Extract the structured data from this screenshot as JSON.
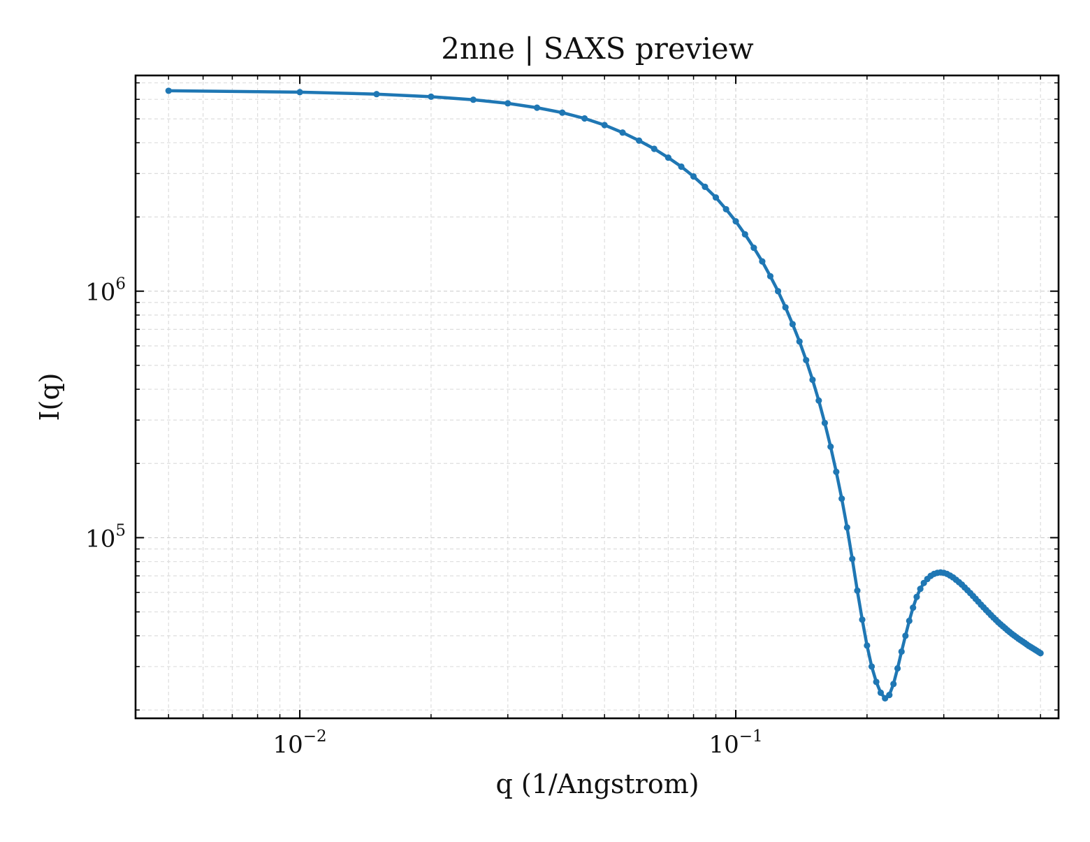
{
  "chart_data": {
    "type": "line",
    "title": "2nne | SAXS preview",
    "xlabel": "q (1/Angstrom)",
    "ylabel": "I(q)",
    "xscale": "log",
    "yscale": "log",
    "xlim": [
      0.0042,
      0.55
    ],
    "ylim": [
      18500,
      7500000
    ],
    "grid": true,
    "legend": "none",
    "color": "#1f77b4",
    "x_ticks": [
      {
        "value": 0.01,
        "base": "10",
        "exp": "−2"
      },
      {
        "value": 0.1,
        "base": "10",
        "exp": "−1"
      }
    ],
    "y_ticks": [
      {
        "value": 100000,
        "base": "10",
        "exp": "5"
      },
      {
        "value": 1000000,
        "base": "10",
        "exp": "6"
      }
    ],
    "series": [
      {
        "x": [
          0.005,
          0.01,
          0.015,
          0.02,
          0.025,
          0.03,
          0.035,
          0.04,
          0.045,
          0.05,
          0.055,
          0.06,
          0.065,
          0.07,
          0.075,
          0.08,
          0.085,
          0.09,
          0.095,
          0.1,
          0.105,
          0.11,
          0.115,
          0.12,
          0.125,
          0.13,
          0.135,
          0.14,
          0.145,
          0.15,
          0.155,
          0.16,
          0.165,
          0.17,
          0.175,
          0.18,
          0.185,
          0.19,
          0.195,
          0.2,
          0.205,
          0.21,
          0.215,
          0.22,
          0.225,
          0.23,
          0.235,
          0.24,
          0.245,
          0.25,
          0.255,
          0.26,
          0.265,
          0.27,
          0.275,
          0.28,
          0.285,
          0.29,
          0.295,
          0.3,
          0.305,
          0.31,
          0.315,
          0.32,
          0.325,
          0.33,
          0.335,
          0.34,
          0.345,
          0.35,
          0.355,
          0.36,
          0.365,
          0.37,
          0.375,
          0.38,
          0.385,
          0.39,
          0.395,
          0.4,
          0.405,
          0.41,
          0.415,
          0.42,
          0.425,
          0.43,
          0.435,
          0.44,
          0.445,
          0.45,
          0.455,
          0.46,
          0.465,
          0.47,
          0.475,
          0.48,
          0.485,
          0.49,
          0.495,
          0.5
        ],
        "y": [
          6500000,
          6420000,
          6300000,
          6150000,
          5980000,
          5780000,
          5550000,
          5300000,
          5020000,
          4720000,
          4400000,
          4080000,
          3780000,
          3480000,
          3200000,
          2920000,
          2650000,
          2400000,
          2150000,
          1920000,
          1700000,
          1500000,
          1320000,
          1150000,
          1000000,
          860000,
          735000,
          625000,
          525000,
          437000,
          360000,
          292000,
          234000,
          185000,
          144000,
          110000,
          82000,
          61000,
          46500,
          36500,
          30000,
          26000,
          23500,
          22300,
          23000,
          25500,
          29500,
          34500,
          40000,
          46000,
          52000,
          57500,
          62000,
          65500,
          68000,
          70000,
          71300,
          72000,
          72300,
          72000,
          71300,
          70200,
          69000,
          67500,
          66000,
          64500,
          62800,
          61200,
          59600,
          58000,
          56500,
          55000,
          53500,
          52200,
          50900,
          49700,
          48500,
          47400,
          46400,
          45400,
          44500,
          43700,
          42900,
          42100,
          41400,
          40700,
          40100,
          39500,
          38900,
          38400,
          37900,
          37400,
          36900,
          36400,
          36000,
          35600,
          35200,
          34800,
          34400,
          34000
        ]
      }
    ]
  }
}
